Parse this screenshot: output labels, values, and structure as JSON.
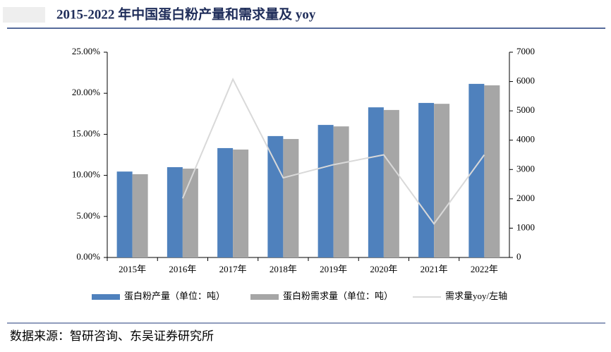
{
  "chart_data": {
    "type": "bar-line",
    "title": "2015-2022 年中国蛋白粉产量和需求量及 yoy",
    "source": "数据来源：智研咨询、东吴证券研究所",
    "categories": [
      "2015年",
      "2016年",
      "2017年",
      "2018年",
      "2019年",
      "2020年",
      "2021年",
      "2022年"
    ],
    "series": [
      {
        "name": "蛋白粉产量（单位：吨）",
        "type": "bar",
        "axis": "y2",
        "color": "#4f81bd",
        "values": [
          2930,
          3080,
          3730,
          4140,
          4520,
          5120,
          5270,
          5920
        ]
      },
      {
        "name": "蛋白粉需求量（单位：吨）",
        "type": "bar",
        "axis": "y2",
        "color": "#a6a6a6",
        "values": [
          2840,
          3030,
          3680,
          4040,
          4470,
          5030,
          5240,
          5870
        ]
      },
      {
        "name": "需求量yoy/左轴",
        "type": "line",
        "axis": "y",
        "color": "#d9d9d9",
        "values": [
          null,
          7.2,
          21.7,
          9.7,
          11.3,
          12.5,
          4.1,
          12.5
        ]
      }
    ],
    "ylim": [
      0,
      25
    ],
    "yticks": [
      {
        "value": 0,
        "label": "0.00%"
      },
      {
        "value": 5,
        "label": "5.00%"
      },
      {
        "value": 10,
        "label": "10.00%"
      },
      {
        "value": 15,
        "label": "15.00%"
      },
      {
        "value": 20,
        "label": "20.00%"
      },
      {
        "value": 25,
        "label": "25.00%"
      }
    ],
    "y2lim": [
      0,
      7000
    ],
    "y2ticks": [
      0,
      1000,
      2000,
      3000,
      4000,
      5000,
      6000,
      7000
    ],
    "grid": false
  }
}
